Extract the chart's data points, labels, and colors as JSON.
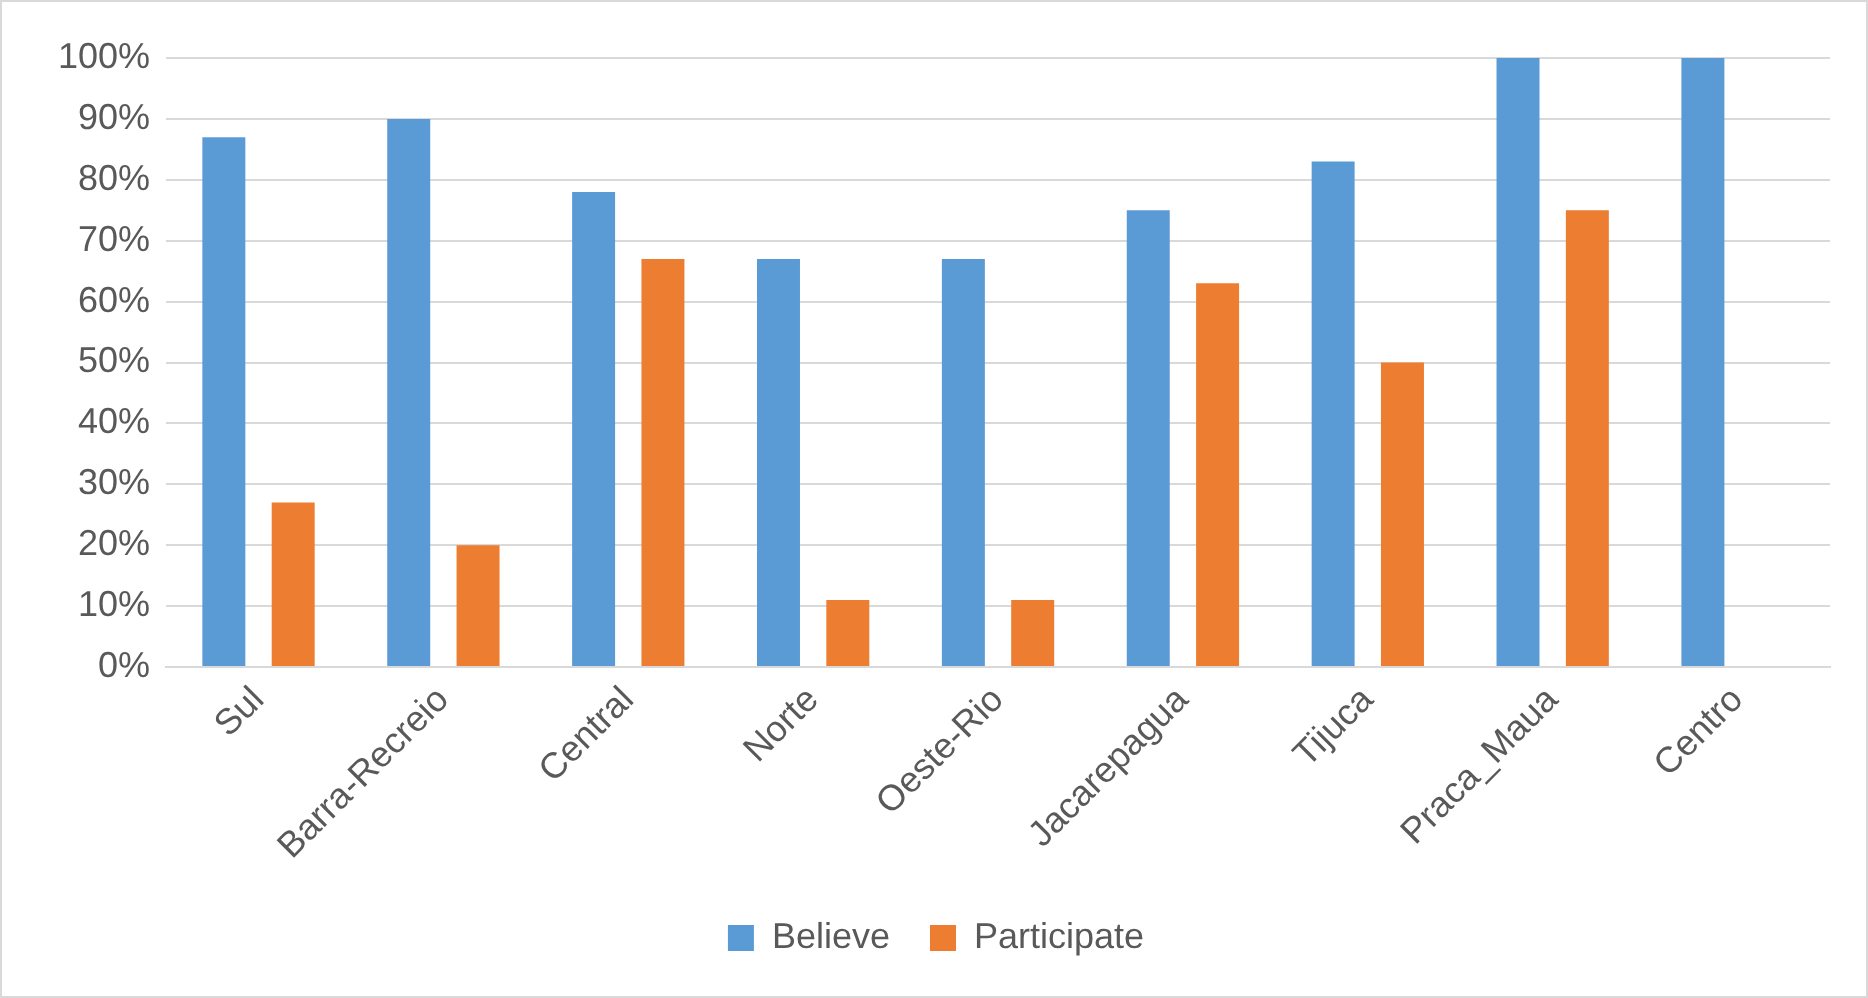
{
  "chart_data": {
    "type": "bar",
    "categories": [
      "Sul",
      "Barra-Recreio",
      "Central",
      "Norte",
      "Oeste-Rio",
      "Jacarepagua",
      "Tijuca",
      "Praca_Maua",
      "Centro"
    ],
    "series": [
      {
        "name": "Believe",
        "color": "#5b9bd5",
        "values": [
          87,
          90,
          78,
          67,
          67,
          75,
          83,
          100,
          100
        ]
      },
      {
        "name": "Participate",
        "color": "#ed7d31",
        "values": [
          27,
          20,
          67,
          11,
          11,
          63,
          50,
          75,
          0
        ]
      }
    ],
    "ylim": [
      0,
      100
    ],
    "yticks": [
      {
        "value": 0,
        "label": "0%"
      },
      {
        "value": 10,
        "label": "10%"
      },
      {
        "value": 20,
        "label": "20%"
      },
      {
        "value": 30,
        "label": "30%"
      },
      {
        "value": 40,
        "label": "40%"
      },
      {
        "value": 50,
        "label": "50%"
      },
      {
        "value": 60,
        "label": "60%"
      },
      {
        "value": 70,
        "label": "70%"
      },
      {
        "value": 80,
        "label": "80%"
      },
      {
        "value": 90,
        "label": "90%"
      },
      {
        "value": 100,
        "label": "100%"
      }
    ],
    "grid": "y",
    "legend": "bottom"
  }
}
